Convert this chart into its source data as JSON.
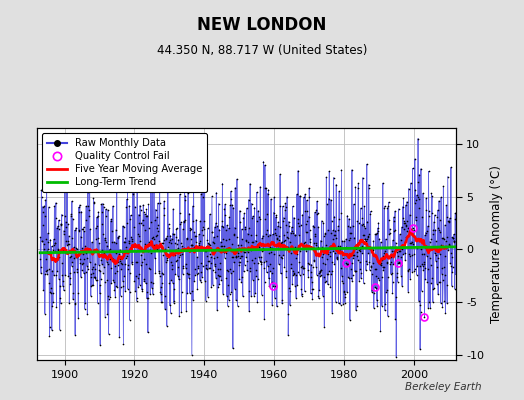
{
  "title": "NEW LONDON",
  "subtitle": "44.350 N, 88.717 W (United States)",
  "ylabel": "Temperature Anomaly (°C)",
  "attribution": "Berkeley Earth",
  "year_start": 1893,
  "year_end": 2011,
  "ylim": [
    -10.5,
    11.5
  ],
  "yticks": [
    -10,
    -5,
    0,
    5,
    10
  ],
  "bg_color": "#e0e0e0",
  "plot_bg_color": "#ffffff",
  "raw_line_color": "#4444dd",
  "raw_dot_color": "#000000",
  "moving_avg_color": "#ff0000",
  "trend_color": "#00bb00",
  "qc_fail_color": "#ff00ff",
  "grid_color": "#bbbbbb",
  "figsize": [
    5.24,
    4.0
  ],
  "dpi": 100
}
